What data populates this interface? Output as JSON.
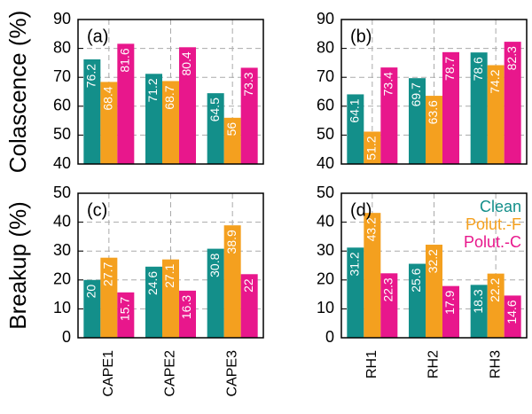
{
  "chart_data": [
    {
      "type": "bar",
      "panel_label": "(a)",
      "ylabel": "Colascence (%)",
      "series": [
        {
          "color": "#138f8a",
          "values": [
            76.2,
            71.2,
            64.5
          ]
        },
        {
          "color": "#f4a01f",
          "values": [
            68.4,
            68.7,
            56
          ]
        },
        {
          "color": "#e8178c",
          "values": [
            81.6,
            80.4,
            73.3
          ]
        }
      ],
      "ylim": [
        40,
        90
      ],
      "yticks": [
        40,
        50,
        60,
        70,
        80,
        90
      ],
      "grid": true
    },
    {
      "type": "bar",
      "panel_label": "(b)",
      "series": [
        {
          "color": "#138f8a",
          "values": [
            64.1,
            69.7,
            78.6
          ]
        },
        {
          "color": "#f4a01f",
          "values": [
            51.2,
            63.6,
            74.2
          ]
        },
        {
          "color": "#e8178c",
          "values": [
            73.4,
            78.7,
            82.3
          ]
        }
      ],
      "ylim": [
        40,
        90
      ],
      "yticks": [
        40,
        50,
        60,
        70,
        80,
        90
      ],
      "grid": true
    },
    {
      "type": "bar",
      "panel_label": "(c)",
      "ylabel": "Breakup (%)",
      "categories": [
        "CAPE1",
        "CAPE2",
        "CAPE3"
      ],
      "series": [
        {
          "color": "#138f8a",
          "values": [
            20,
            24.6,
            30.8
          ]
        },
        {
          "color": "#f4a01f",
          "values": [
            27.7,
            27.1,
            38.9
          ]
        },
        {
          "color": "#e8178c",
          "values": [
            15.7,
            16.3,
            22
          ]
        }
      ],
      "ylim": [
        0,
        50
      ],
      "yticks": [
        0,
        10,
        20,
        30,
        40,
        50
      ],
      "grid": true
    },
    {
      "type": "bar",
      "panel_label": "(d)",
      "categories": [
        "RH1",
        "RH2",
        "RH3"
      ],
      "series": [
        {
          "name": "Clean",
          "color": "#138f8a",
          "values": [
            31.2,
            25.6,
            18.3
          ]
        },
        {
          "name": "Polut.-F",
          "color": "#f4a01f",
          "values": [
            43.2,
            32.2,
            22.2
          ]
        },
        {
          "name": "Polut.-C",
          "color": "#e8178c",
          "values": [
            22.3,
            17.9,
            14.6
          ]
        }
      ],
      "ylim": [
        0,
        50
      ],
      "yticks": [
        0,
        10,
        20,
        30,
        40,
        50
      ],
      "grid": true
    }
  ]
}
